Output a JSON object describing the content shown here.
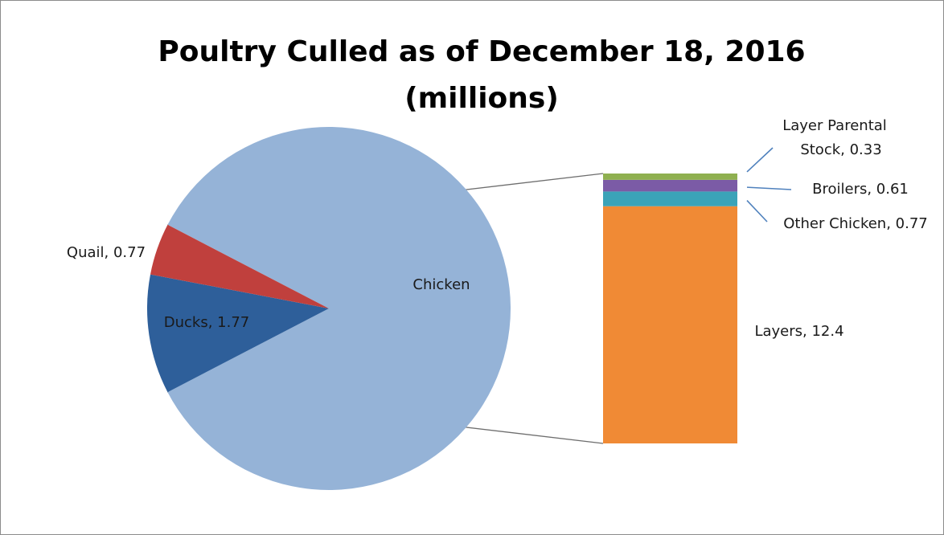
{
  "chart_data": {
    "type": "bar-of-pie",
    "title": "Poultry Culled as of December 18, 2016",
    "subtitle": "(millions)",
    "pie": {
      "slices": [
        {
          "label": "Chicken",
          "value": 14.11,
          "data_label": "Chicken",
          "color": "#95b3d7"
        },
        {
          "label": "Ducks",
          "value": 1.77,
          "data_label": "Ducks, 1.77",
          "color": "#2e5f9a"
        },
        {
          "label": "Quail",
          "value": 0.77,
          "data_label": "Quail, 0.77",
          "color": "#c0403d"
        }
      ]
    },
    "bar": {
      "of": "Chicken",
      "segments": [
        {
          "label": "Layers",
          "value": 12.4,
          "data_label": "Layers, 12.4",
          "color": "#f08a35"
        },
        {
          "label": "Other Chicken",
          "value": 0.77,
          "data_label": "Other Chicken, 0.77",
          "color": "#3ba3b8"
        },
        {
          "label": "Broilers",
          "value": 0.61,
          "data_label": "Broilers, 0.61",
          "color": "#7b5ba6"
        },
        {
          "label": "Layer Parental Stock",
          "value": 0.33,
          "data_label_lines": [
            "Layer Parental",
            "Stock, 0.33"
          ],
          "color": "#8fb050"
        }
      ]
    },
    "legend": "none",
    "connector_color": "#6e6e6e",
    "leader_line_color": "#4f81bd"
  }
}
